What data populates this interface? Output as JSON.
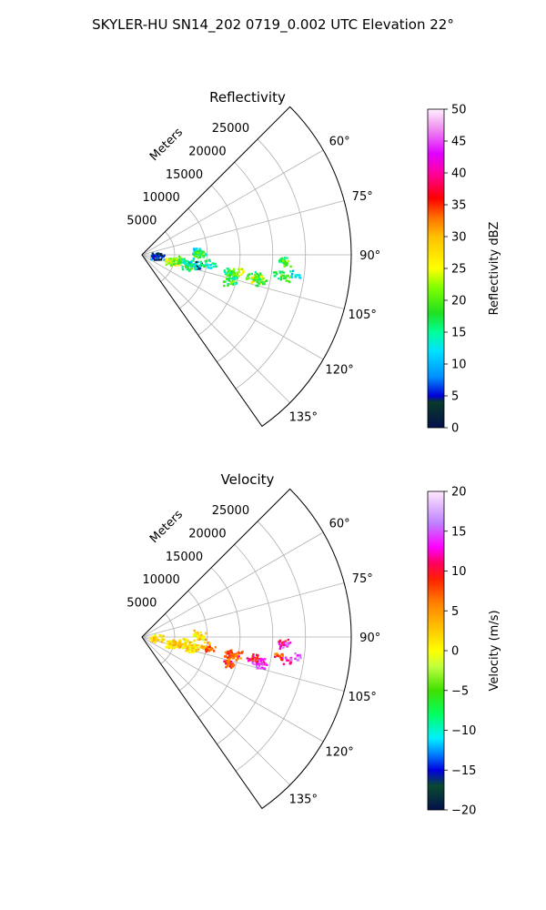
{
  "figure": {
    "title": "SKYLER-HU  SN14_202  0719_0.002 UTC Elevation 22°"
  },
  "chart_data": [
    {
      "type": "polar-sector",
      "title": "Reflectivity",
      "range_label": "Meters",
      "range_ticks": [
        5000,
        10000,
        15000,
        20000,
        25000
      ],
      "range_max": 32000,
      "azimuth_min_deg": 45,
      "azimuth_max_deg": 145,
      "azimuth_ticks": [
        "60°",
        "75°",
        "90°",
        "105°",
        "120°",
        "135°"
      ],
      "azimuth_tick_values": [
        60,
        75,
        90,
        105,
        120,
        135
      ],
      "colorbar": {
        "label": "Reflectivity dBZ",
        "min": 0,
        "max": 50,
        "ticks": [
          "0",
          "5",
          "10",
          "15",
          "20",
          "25",
          "30",
          "35",
          "40",
          "45",
          "50"
        ],
        "tick_values": [
          0,
          5,
          10,
          15,
          20,
          25,
          30,
          35,
          40,
          45,
          50
        ]
      },
      "echoes": [
        {
          "az": 92,
          "r": 2000,
          "v": 8
        },
        {
          "az": 93,
          "r": 2500,
          "v": 6
        },
        {
          "az": 95,
          "r": 2200,
          "v": 4
        },
        {
          "az": 86,
          "r": 8500,
          "v": 12
        },
        {
          "az": 88,
          "r": 8800,
          "v": 16
        },
        {
          "az": 89,
          "r": 8600,
          "v": 20
        },
        {
          "az": 99,
          "r": 5000,
          "v": 20
        },
        {
          "az": 100,
          "r": 5200,
          "v": 24
        },
        {
          "az": 104,
          "r": 4300,
          "v": 26
        },
        {
          "az": 103,
          "r": 4500,
          "v": 22
        },
        {
          "az": 96,
          "r": 6200,
          "v": 18
        },
        {
          "az": 98,
          "r": 7000,
          "v": 14
        },
        {
          "az": 101,
          "r": 7800,
          "v": 10
        },
        {
          "az": 100,
          "r": 8300,
          "v": 6
        },
        {
          "az": 103,
          "r": 7600,
          "v": 14
        },
        {
          "az": 105,
          "r": 7000,
          "v": 18
        },
        {
          "az": 97,
          "r": 9500,
          "v": 16
        },
        {
          "az": 99,
          "r": 10500,
          "v": 14
        },
        {
          "az": 100,
          "r": 13500,
          "v": 16
        },
        {
          "az": 101,
          "r": 14200,
          "v": 20
        },
        {
          "az": 100,
          "r": 14800,
          "v": 24
        },
        {
          "az": 102,
          "r": 14000,
          "v": 18
        },
        {
          "az": 100,
          "r": 17500,
          "v": 16
        },
        {
          "az": 101,
          "r": 18300,
          "v": 22
        },
        {
          "az": 102,
          "r": 17800,
          "v": 26
        },
        {
          "az": 101,
          "r": 17000,
          "v": 20
        },
        {
          "az": 103,
          "r": 18600,
          "v": 18
        },
        {
          "az": 106,
          "r": 14000,
          "v": 16
        },
        {
          "az": 107,
          "r": 13800,
          "v": 20
        },
        {
          "az": 92,
          "r": 21500,
          "v": 16
        },
        {
          "az": 93,
          "r": 21800,
          "v": 20
        },
        {
          "az": 98,
          "r": 21000,
          "v": 16
        },
        {
          "az": 99,
          "r": 22200,
          "v": 20
        },
        {
          "az": 97,
          "r": 23500,
          "v": 12
        }
      ]
    },
    {
      "type": "polar-sector",
      "title": "Velocity",
      "range_label": "Meters",
      "range_ticks": [
        5000,
        10000,
        15000,
        20000,
        25000
      ],
      "range_max": 32000,
      "azimuth_min_deg": 45,
      "azimuth_max_deg": 145,
      "azimuth_ticks": [
        "60°",
        "75°",
        "90°",
        "105°",
        "120°",
        "135°"
      ],
      "azimuth_tick_values": [
        60,
        75,
        90,
        105,
        120,
        135
      ],
      "colorbar": {
        "label": "Velocity (m/s)",
        "min": -20,
        "max": 20,
        "ticks": [
          "−20",
          "−15",
          "−10",
          "−5",
          "0",
          "5",
          "10",
          "15",
          "20"
        ],
        "tick_values": [
          -20,
          -15,
          -10,
          -5,
          0,
          5,
          10,
          15,
          20
        ]
      },
      "echoes": [
        {
          "az": 92,
          "r": 2000,
          "v": 1
        },
        {
          "az": 94,
          "r": 2400,
          "v": 2
        },
        {
          "az": 86,
          "r": 8500,
          "v": 2
        },
        {
          "az": 88,
          "r": 8800,
          "v": 3
        },
        {
          "az": 89,
          "r": 8600,
          "v": 1
        },
        {
          "az": 99,
          "r": 5000,
          "v": 2
        },
        {
          "az": 100,
          "r": 5200,
          "v": 3
        },
        {
          "az": 104,
          "r": 4300,
          "v": 1
        },
        {
          "az": 103,
          "r": 4500,
          "v": 2
        },
        {
          "az": 96,
          "r": 6200,
          "v": 1
        },
        {
          "az": 98,
          "r": 7000,
          "v": 2
        },
        {
          "az": 101,
          "r": 7800,
          "v": 3
        },
        {
          "az": 100,
          "r": 8300,
          "v": 2
        },
        {
          "az": 103,
          "r": 7600,
          "v": 2
        },
        {
          "az": 105,
          "r": 7000,
          "v": 1
        },
        {
          "az": 97,
          "r": 9500,
          "v": 4
        },
        {
          "az": 99,
          "r": 10500,
          "v": 7
        },
        {
          "az": 100,
          "r": 13500,
          "v": 7
        },
        {
          "az": 101,
          "r": 14200,
          "v": 10
        },
        {
          "az": 100,
          "r": 14800,
          "v": 6
        },
        {
          "az": 102,
          "r": 14000,
          "v": 8
        },
        {
          "az": 100,
          "r": 17500,
          "v": 8
        },
        {
          "az": 101,
          "r": 18300,
          "v": 12
        },
        {
          "az": 102,
          "r": 17800,
          "v": 16
        },
        {
          "az": 101,
          "r": 17000,
          "v": 10
        },
        {
          "az": 103,
          "r": 18600,
          "v": 14
        },
        {
          "az": 106,
          "r": 14000,
          "v": 6
        },
        {
          "az": 107,
          "r": 13800,
          "v": 9
        },
        {
          "az": 92,
          "r": 21500,
          "v": 11
        },
        {
          "az": 93,
          "r": 21800,
          "v": 14
        },
        {
          "az": 98,
          "r": 21000,
          "v": 8
        },
        {
          "az": 99,
          "r": 22200,
          "v": 12
        },
        {
          "az": 97,
          "r": 23500,
          "v": 16
        }
      ]
    }
  ]
}
